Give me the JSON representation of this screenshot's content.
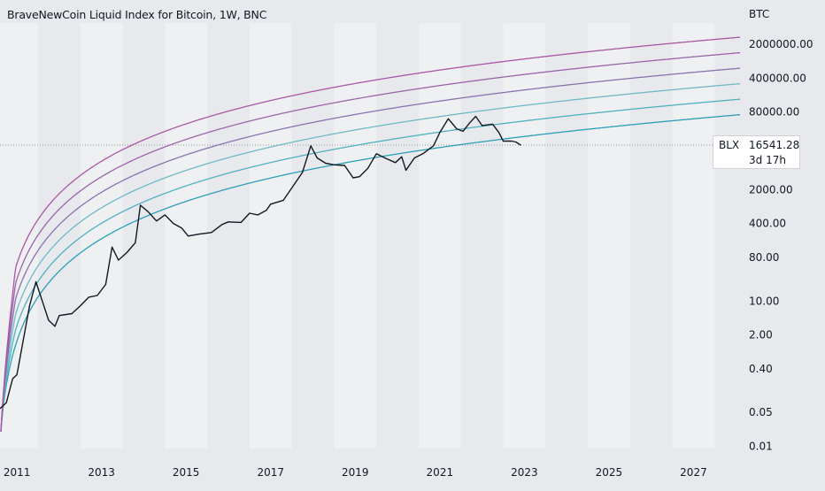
{
  "chart_data": {
    "type": "line",
    "title": "BraveNewCoin Liquid Index for Bitcoin, 1W, BNC",
    "y_unit": "BTC",
    "scale": "log",
    "xlabel": "",
    "ylabel": "",
    "x_tick_labels": [
      "2011",
      "2013",
      "2015",
      "2017",
      "2019",
      "2021",
      "2023",
      "2025",
      "2027"
    ],
    "y_tick_labels": [
      "2000000.00",
      "400000.00",
      "80000.00",
      "2000.00",
      "400.00",
      "80.00",
      "10.00",
      "2.00",
      "0.40",
      "0.05",
      "0.01"
    ],
    "xlim": [
      2010.6,
      2028.1
    ],
    "ylim": [
      0.009,
      5500000
    ],
    "grid": false,
    "legend": "none",
    "alternating_year_bands": true,
    "series": [
      {
        "values": [
          [
            2010.6,
            0.06
          ],
          [
            2010.75,
            0.08
          ],
          [
            2010.9,
            0.25
          ],
          [
            2011.0,
            0.3
          ],
          [
            2011.1,
            0.9
          ],
          [
            2011.3,
            8
          ],
          [
            2011.45,
            25
          ],
          [
            2011.6,
            10
          ],
          [
            2011.75,
            4
          ],
          [
            2011.9,
            3
          ],
          [
            2012.0,
            5
          ],
          [
            2012.3,
            5.5
          ],
          [
            2012.5,
            8
          ],
          [
            2012.7,
            12
          ],
          [
            2012.9,
            13
          ],
          [
            2013.1,
            22
          ],
          [
            2013.25,
            130
          ],
          [
            2013.4,
            70
          ],
          [
            2013.6,
            100
          ],
          [
            2013.8,
            160
          ],
          [
            2013.92,
            950
          ],
          [
            2014.1,
            700
          ],
          [
            2014.3,
            450
          ],
          [
            2014.5,
            600
          ],
          [
            2014.7,
            400
          ],
          [
            2014.9,
            320
          ],
          [
            2015.05,
            220
          ],
          [
            2015.3,
            240
          ],
          [
            2015.6,
            260
          ],
          [
            2015.85,
            380
          ],
          [
            2016.0,
            430
          ],
          [
            2016.3,
            420
          ],
          [
            2016.5,
            650
          ],
          [
            2016.7,
            600
          ],
          [
            2016.9,
            750
          ],
          [
            2017.0,
            1000
          ],
          [
            2017.3,
            1200
          ],
          [
            2017.55,
            2500
          ],
          [
            2017.75,
            4500
          ],
          [
            2017.95,
            16000
          ],
          [
            2018.1,
            9000
          ],
          [
            2018.3,
            7000
          ],
          [
            2018.5,
            6500
          ],
          [
            2018.75,
            6300
          ],
          [
            2018.95,
            3500
          ],
          [
            2019.1,
            3700
          ],
          [
            2019.3,
            5500
          ],
          [
            2019.5,
            11000
          ],
          [
            2019.7,
            9000
          ],
          [
            2019.95,
            7200
          ],
          [
            2020.1,
            9500
          ],
          [
            2020.2,
            5000
          ],
          [
            2020.4,
            9000
          ],
          [
            2020.6,
            11000
          ],
          [
            2020.85,
            16000
          ],
          [
            2021.0,
            30000
          ],
          [
            2021.2,
            58000
          ],
          [
            2021.4,
            36000
          ],
          [
            2021.55,
            32000
          ],
          [
            2021.7,
            47000
          ],
          [
            2021.85,
            65000
          ],
          [
            2022.0,
            42000
          ],
          [
            2022.25,
            45000
          ],
          [
            2022.4,
            30000
          ],
          [
            2022.5,
            20000
          ],
          [
            2022.7,
            20000
          ],
          [
            2022.8,
            19200
          ],
          [
            2022.92,
            16541.28
          ]
        ]
      }
    ],
    "band_count": 6,
    "band_colors": [
      "#2a9fb5",
      "#4fb1c0",
      "#6fb9c6",
      "#8a72b0",
      "#9a64aa",
      "#a857a5"
    ],
    "last_price": {
      "symbol": "BLX",
      "value": "16541.28",
      "countdown": "3d 17h"
    }
  }
}
